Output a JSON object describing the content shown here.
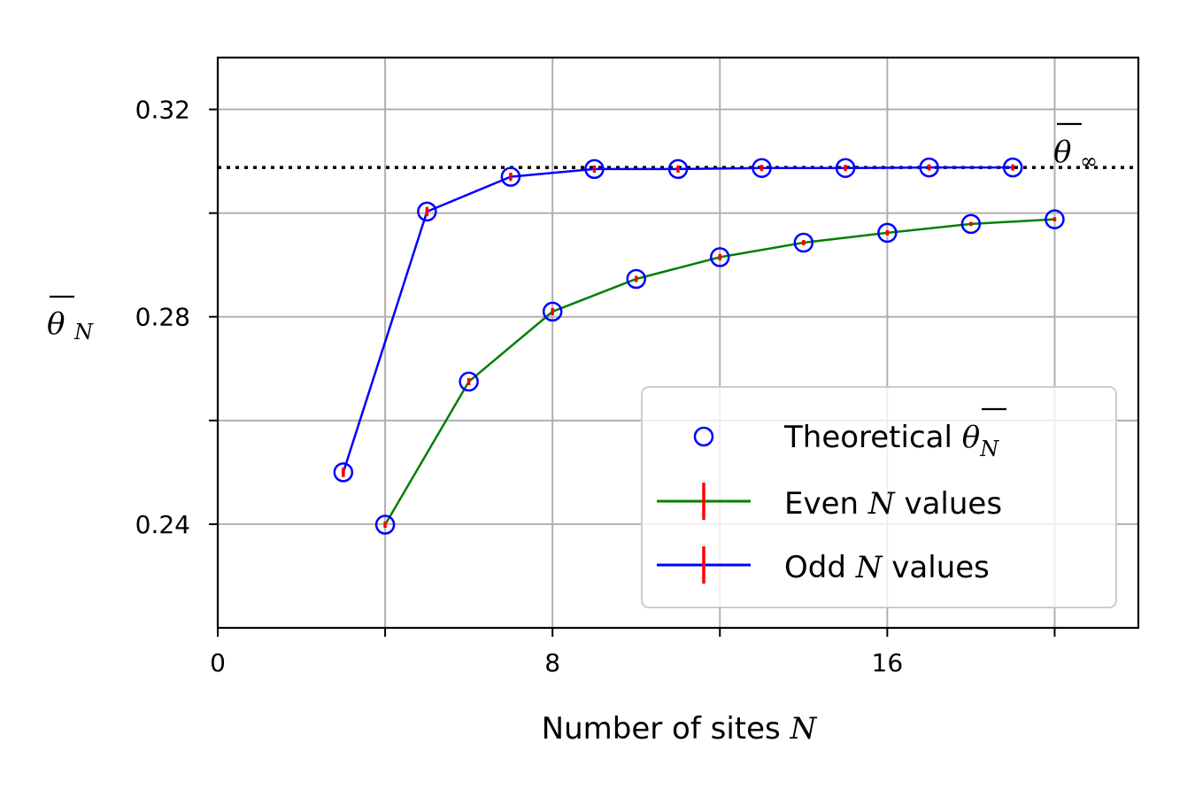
{
  "chart_data": {
    "type": "line",
    "title": "",
    "xlabel": "Number of sites N",
    "ylabel": "θ̄_N",
    "xlim": [
      0,
      22
    ],
    "ylim": [
      0.22,
      0.33
    ],
    "xticks": [
      0,
      4,
      8,
      12,
      16,
      20
    ],
    "xtick_labels": [
      "0",
      "",
      "8",
      "",
      "16",
      ""
    ],
    "yticks": [
      0.24,
      0.26,
      0.28,
      0.3,
      0.32
    ],
    "ytick_labels": [
      "0.24",
      "",
      "0.28",
      "",
      "0.32"
    ],
    "grid": true,
    "legend_position": "lower right",
    "reference_line": {
      "y": 0.3088,
      "style": "dotted",
      "color": "#000000",
      "label": "θ̄_∞"
    },
    "series": [
      {
        "name": "Even N values",
        "color": "#008000",
        "error_color": "#ff0000",
        "x": [
          4,
          6,
          8,
          10,
          12,
          14,
          16,
          18,
          20
        ],
        "values": [
          0.2399,
          0.2675,
          0.281,
          0.2873,
          0.2915,
          0.2943,
          0.2962,
          0.2979,
          0.2988
        ],
        "errors": [
          0.0006,
          0.0007,
          0.0007,
          0.0006,
          0.0006,
          0.0005,
          0.0005,
          0.0004,
          0.0004
        ]
      },
      {
        "name": "Odd N values",
        "color": "#0000ff",
        "error_color": "#ff0000",
        "x": [
          3,
          5,
          7,
          9,
          11,
          13,
          15,
          17,
          19
        ],
        "values": [
          0.25,
          0.3003,
          0.307,
          0.3085,
          0.3085,
          0.3087,
          0.3087,
          0.3088,
          0.3088
        ],
        "errors": [
          0.0009,
          0.0009,
          0.0008,
          0.0007,
          0.0007,
          0.0006,
          0.0006,
          0.0006,
          0.0006
        ]
      },
      {
        "name": "Theoretical θ̄_N",
        "type": "scatter",
        "marker": "open-circle",
        "color": "#0000ff",
        "x": [
          3,
          4,
          5,
          6,
          7,
          8,
          9,
          10,
          11,
          12,
          13,
          14,
          15,
          16,
          17,
          18,
          19,
          20
        ],
        "values": [
          0.25,
          0.2399,
          0.3003,
          0.2675,
          0.307,
          0.281,
          0.3085,
          0.2873,
          0.3085,
          0.2915,
          0.3087,
          0.2943,
          0.3087,
          0.2962,
          0.3088,
          0.2979,
          0.3088,
          0.2988
        ]
      }
    ],
    "legend": {
      "theoretical_prefix": "Theoretical ",
      "even_prefix": "Even ",
      "even_suffix": " values",
      "odd_prefix": "Odd ",
      "odd_suffix": " values"
    }
  }
}
